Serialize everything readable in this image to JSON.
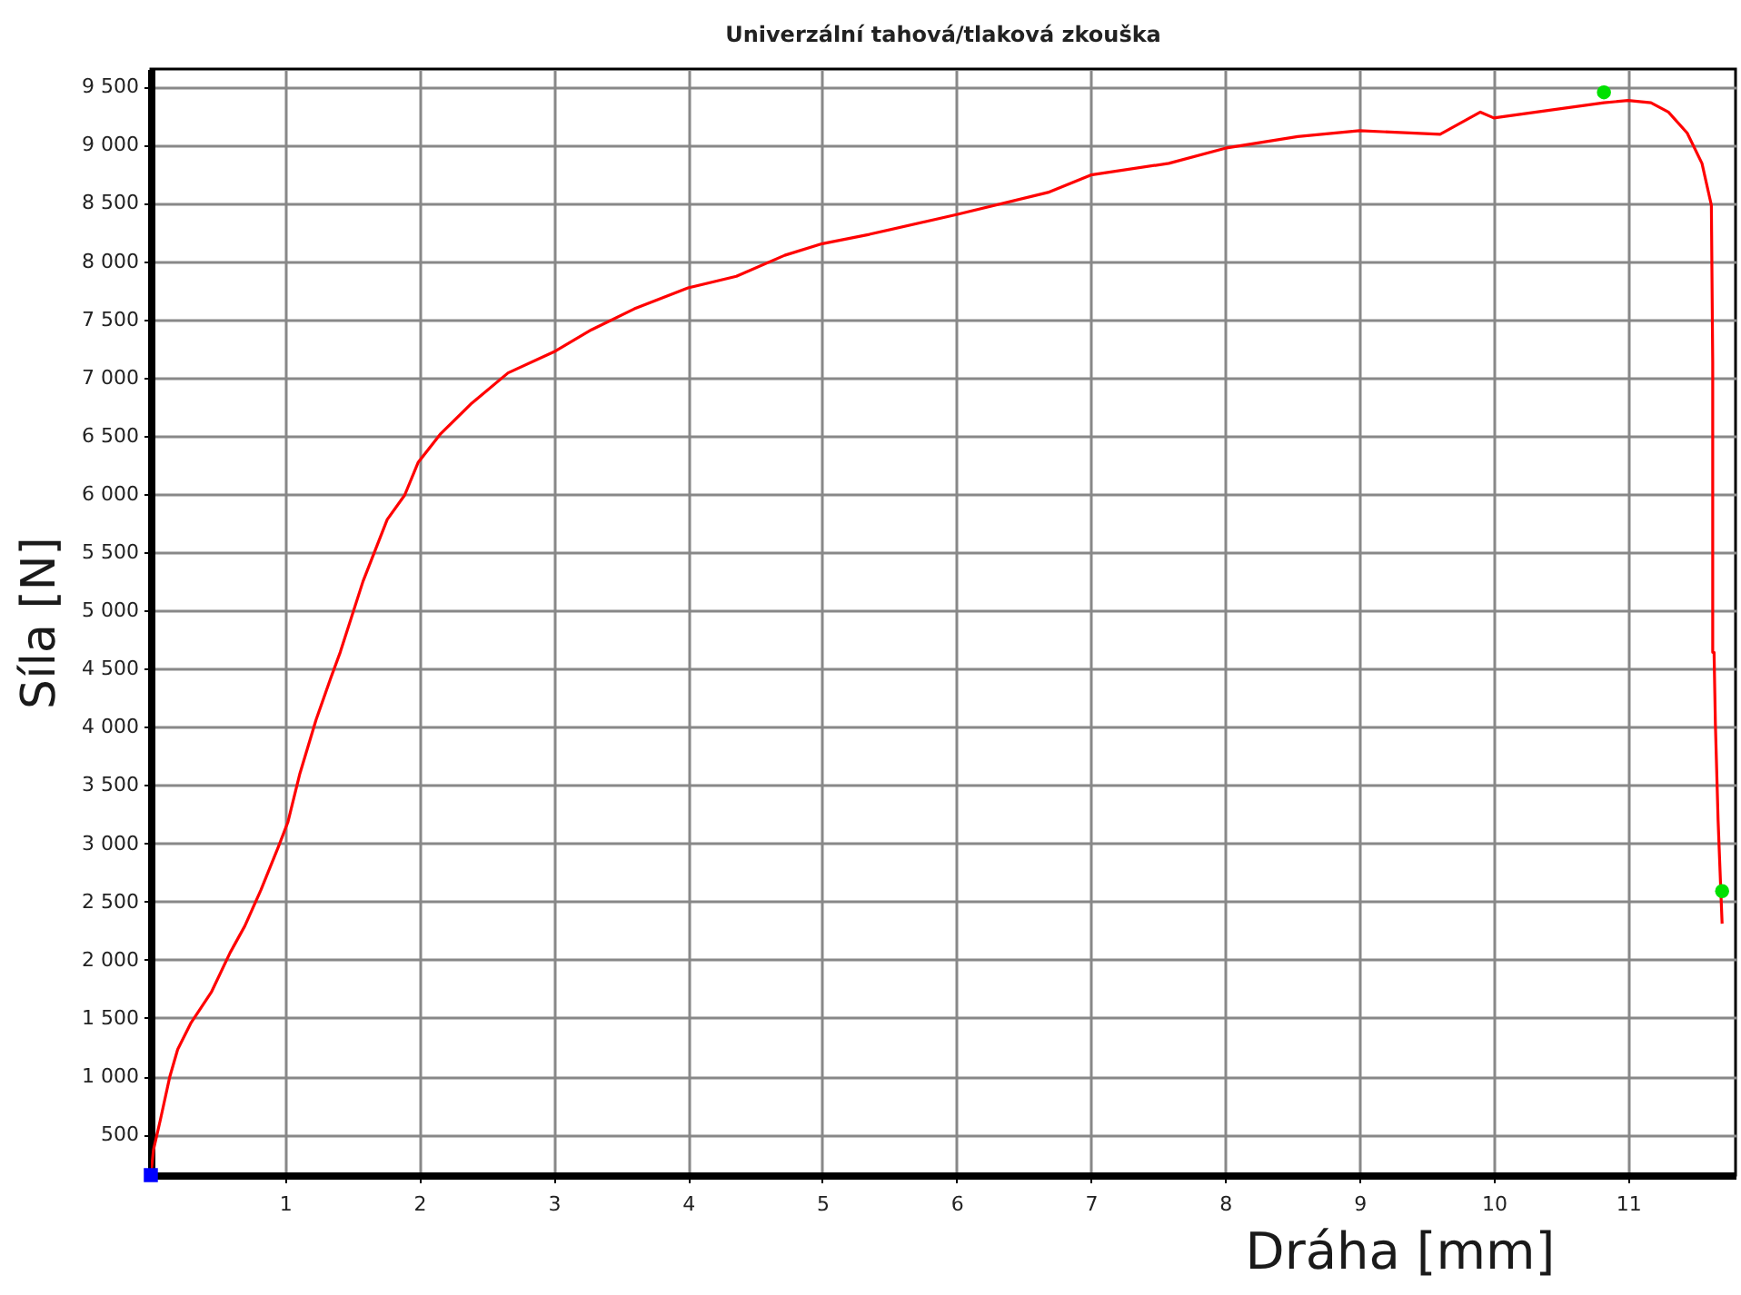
{
  "chart_data": {
    "type": "line",
    "title": "Univerzální tahová/tlaková zkouška",
    "xlabel": "Dráha [mm]",
    "ylabel": "Síla [N]",
    "xlim": [
      0,
      11.8
    ],
    "ylim": [
      150,
      9650
    ],
    "xticks": [
      1,
      2,
      3,
      4,
      5,
      6,
      7,
      8,
      9,
      10,
      11
    ],
    "yticks": [
      {
        "value": 500,
        "label": "500"
      },
      {
        "value": 1000,
        "label": "1 000"
      },
      {
        "value": 1500,
        "label": "1 500"
      },
      {
        "value": 2000,
        "label": "2 000"
      },
      {
        "value": 2500,
        "label": "2 500"
      },
      {
        "value": 3000,
        "label": "3 000"
      },
      {
        "value": 3500,
        "label": "3 500"
      },
      {
        "value": 4000,
        "label": "4 000"
      },
      {
        "value": 4500,
        "label": "4 500"
      },
      {
        "value": 5000,
        "label": "5 000"
      },
      {
        "value": 5500,
        "label": "5 500"
      },
      {
        "value": 6000,
        "label": "6 000"
      },
      {
        "value": 6500,
        "label": "6 500"
      },
      {
        "value": 7000,
        "label": "7 000"
      },
      {
        "value": 7500,
        "label": "7 500"
      },
      {
        "value": 8000,
        "label": "8 000"
      },
      {
        "value": 8500,
        "label": "8 500"
      },
      {
        "value": 9000,
        "label": "9 000"
      },
      {
        "value": 9500,
        "label": "9 500"
      }
    ],
    "grid": true,
    "line_style": "solid",
    "series": [
      {
        "color": "#ff0000",
        "marker": "none",
        "x": [
          0,
          0.02,
          0.07,
          0.14,
          0.2,
          0.3,
          0.45,
          0.59,
          0.7,
          0.82,
          0.95,
          1.02,
          1.11,
          1.23,
          1.34,
          1.41,
          1.58,
          1.76,
          1.89,
          1.99,
          2.16,
          2.39,
          2.66,
          3.0,
          3.28,
          3.6,
          4.0,
          4.36,
          4.72,
          5.0,
          5.35,
          6.0,
          6.68,
          7.0,
          7.58,
          8.0,
          8.54,
          9.0,
          9.6,
          9.9,
          10.0,
          10.5,
          10.82,
          11.0,
          11.17,
          11.3,
          11.44,
          11.55,
          11.62,
          11.63,
          11.63,
          11.64,
          11.65,
          11.67,
          11.69,
          11.7
        ],
        "values": [
          150,
          370,
          620,
          990,
          1230,
          1460,
          1720,
          2060,
          2290,
          2600,
          2970,
          3180,
          3600,
          4060,
          4420,
          4640,
          5250,
          5780,
          5990,
          6270,
          6520,
          6780,
          7040,
          7220,
          7410,
          7590,
          7770,
          7870,
          8050,
          8150,
          8230,
          8400,
          8590,
          8740,
          8840,
          8970,
          9070,
          9120,
          9090,
          9280,
          9230,
          9310,
          9360,
          9380,
          9360,
          9280,
          9100,
          8840,
          8480,
          7130,
          4640,
          4640,
          4020,
          3200,
          2600,
          2310
        ]
      },
      {
        "type": "scatter",
        "color": "#00e000",
        "marker": "circle",
        "x": [
          10.82,
          11.7
        ],
        "values": [
          9450,
          2590
        ]
      },
      {
        "type": "scatter",
        "color": "#0000ff",
        "marker": "square",
        "x": [
          0
        ],
        "values": [
          150
        ]
      }
    ]
  }
}
